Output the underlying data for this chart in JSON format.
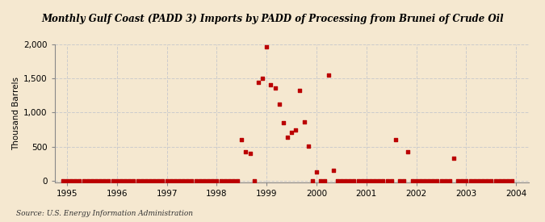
{
  "title": "Monthly Gulf Coast (PADD 3) Imports by PADD of Processing from Brunei of Crude Oil",
  "ylabel": "Thousand Barrels",
  "source": "Source: U.S. Energy Information Administration",
  "background_color": "#f5e8d0",
  "marker_color": "#bb0000",
  "xlim": [
    1994.75,
    2004.25
  ],
  "ylim": [
    -20,
    2000
  ],
  "yticks": [
    0,
    500,
    1000,
    1500,
    2000
  ],
  "xticks": [
    1995,
    1996,
    1997,
    1998,
    1999,
    2000,
    2001,
    2002,
    2003,
    2004
  ],
  "data_points": [
    [
      1994.917,
      0
    ],
    [
      1995.0,
      0
    ],
    [
      1995.083,
      0
    ],
    [
      1995.167,
      0
    ],
    [
      1995.25,
      0
    ],
    [
      1995.333,
      0
    ],
    [
      1995.417,
      0
    ],
    [
      1995.5,
      0
    ],
    [
      1995.583,
      0
    ],
    [
      1995.667,
      0
    ],
    [
      1995.75,
      0
    ],
    [
      1995.833,
      0
    ],
    [
      1995.917,
      0
    ],
    [
      1996.0,
      0
    ],
    [
      1996.083,
      0
    ],
    [
      1996.167,
      0
    ],
    [
      1996.25,
      0
    ],
    [
      1996.333,
      0
    ],
    [
      1996.417,
      0
    ],
    [
      1996.5,
      0
    ],
    [
      1996.583,
      0
    ],
    [
      1996.667,
      0
    ],
    [
      1996.75,
      0
    ],
    [
      1996.833,
      0
    ],
    [
      1996.917,
      0
    ],
    [
      1997.0,
      0
    ],
    [
      1997.083,
      0
    ],
    [
      1997.167,
      0
    ],
    [
      1997.25,
      0
    ],
    [
      1997.333,
      0
    ],
    [
      1997.417,
      0
    ],
    [
      1997.5,
      0
    ],
    [
      1997.583,
      0
    ],
    [
      1997.667,
      0
    ],
    [
      1997.75,
      0
    ],
    [
      1997.833,
      0
    ],
    [
      1997.917,
      0
    ],
    [
      1998.0,
      0
    ],
    [
      1998.083,
      0
    ],
    [
      1998.167,
      0
    ],
    [
      1998.25,
      0
    ],
    [
      1998.333,
      0
    ],
    [
      1998.417,
      0
    ],
    [
      1998.5,
      600
    ],
    [
      1998.583,
      420
    ],
    [
      1998.667,
      400
    ],
    [
      1998.75,
      0
    ],
    [
      1998.833,
      1440
    ],
    [
      1998.917,
      1500
    ],
    [
      1999.0,
      1960
    ],
    [
      1999.083,
      1410
    ],
    [
      1999.167,
      1360
    ],
    [
      1999.25,
      1120
    ],
    [
      1999.333,
      850
    ],
    [
      1999.417,
      640
    ],
    [
      1999.5,
      710
    ],
    [
      1999.583,
      740
    ],
    [
      1999.667,
      1330
    ],
    [
      1999.75,
      860
    ],
    [
      1999.833,
      510
    ],
    [
      1999.917,
      0
    ],
    [
      2000.0,
      130
    ],
    [
      2000.083,
      0
    ],
    [
      2000.167,
      0
    ],
    [
      2000.25,
      1550
    ],
    [
      2000.333,
      150
    ],
    [
      2000.417,
      0
    ],
    [
      2000.5,
      0
    ],
    [
      2000.583,
      0
    ],
    [
      2000.667,
      0
    ],
    [
      2000.75,
      0
    ],
    [
      2000.833,
      0
    ],
    [
      2000.917,
      0
    ],
    [
      2001.0,
      0
    ],
    [
      2001.083,
      0
    ],
    [
      2001.167,
      0
    ],
    [
      2001.25,
      0
    ],
    [
      2001.333,
      0
    ],
    [
      2001.417,
      0
    ],
    [
      2001.5,
      0
    ],
    [
      2001.583,
      600
    ],
    [
      2001.667,
      0
    ],
    [
      2001.75,
      0
    ],
    [
      2001.833,
      430
    ],
    [
      2001.917,
      0
    ],
    [
      2002.0,
      0
    ],
    [
      2002.083,
      0
    ],
    [
      2002.167,
      0
    ],
    [
      2002.25,
      0
    ],
    [
      2002.333,
      0
    ],
    [
      2002.417,
      0
    ],
    [
      2002.5,
      0
    ],
    [
      2002.583,
      0
    ],
    [
      2002.667,
      0
    ],
    [
      2002.75,
      330
    ],
    [
      2002.833,
      0
    ],
    [
      2002.917,
      0
    ],
    [
      2003.0,
      0
    ],
    [
      2003.083,
      0
    ],
    [
      2003.167,
      0
    ],
    [
      2003.25,
      0
    ],
    [
      2003.333,
      0
    ],
    [
      2003.417,
      0
    ],
    [
      2003.5,
      0
    ],
    [
      2003.583,
      0
    ],
    [
      2003.667,
      0
    ],
    [
      2003.75,
      0
    ],
    [
      2003.833,
      0
    ],
    [
      2003.917,
      0
    ]
  ]
}
